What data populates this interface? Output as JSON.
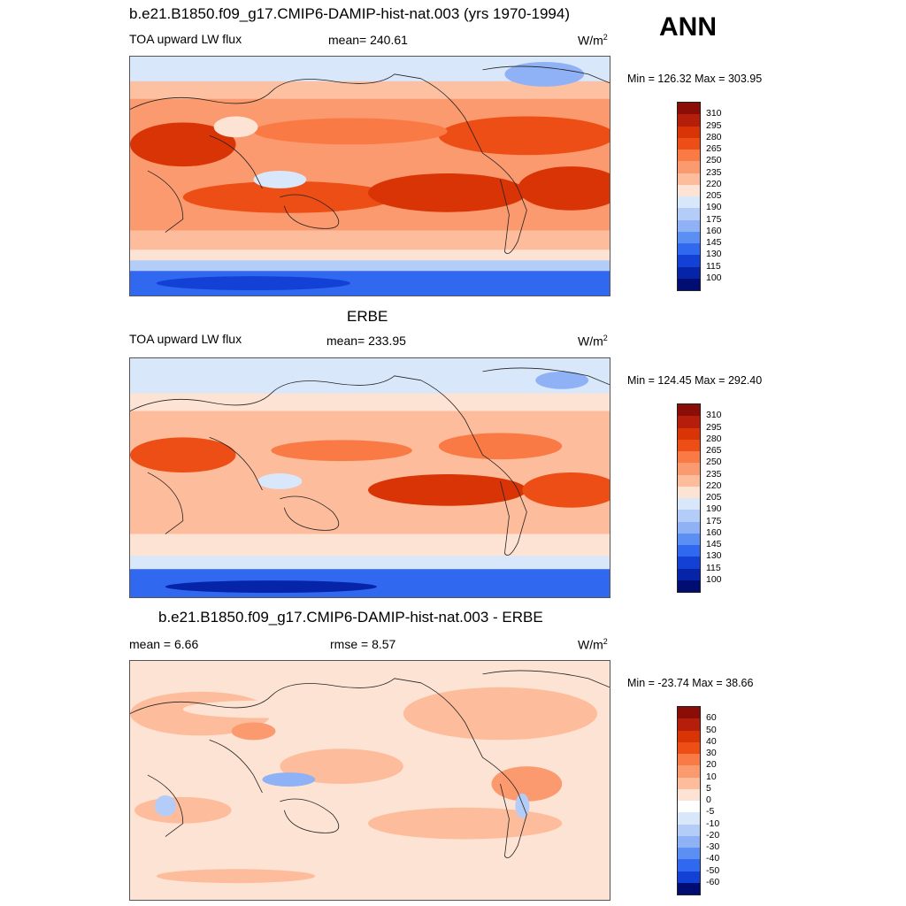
{
  "season": "ANN",
  "panel1": {
    "title": "b.e21.B1850.f09_g17.CMIP6-DAMIP-hist-nat.003 (yrs 1970-1994)",
    "variable": "TOA upward LW flux",
    "mean": "mean= 240.61",
    "units": "W/m",
    "units_sup": "2",
    "minmax": "Min = 126.32 Max = 303.95"
  },
  "panel2": {
    "title": "ERBE",
    "variable": "TOA upward LW flux",
    "mean": "mean= 233.95",
    "units": "W/m",
    "units_sup": "2",
    "minmax": "Min = 124.45 Max = 292.40"
  },
  "panel3": {
    "title": "b.e21.B1850.f09_g17.CMIP6-DAMIP-hist-nat.003 - ERBE",
    "mean": "mean =   6.66",
    "rmse": "rmse =   8.57",
    "units": "W/m",
    "units_sup": "2",
    "minmax": "Min = -23.74 Max =  38.66"
  },
  "colorbar_abs": {
    "labels": [
      "310",
      "295",
      "280",
      "265",
      "250",
      "235",
      "220",
      "205",
      "190",
      "175",
      "160",
      "145",
      "130",
      "115",
      "100"
    ],
    "colors": [
      "#8a0d08",
      "#b51e0a",
      "#d93406",
      "#ed4e16",
      "#f97a45",
      "#fb9a6e",
      "#fdbd9c",
      "#fde3d3",
      "#d9e7fb",
      "#b4cdf8",
      "#8fb1f6",
      "#5c8ff4",
      "#3168f0",
      "#1341d6",
      "#0524a8",
      "#000e73"
    ]
  },
  "colorbar_diff": {
    "labels": [
      "60",
      "50",
      "40",
      "30",
      "20",
      "10",
      "5",
      "0",
      "-5",
      "-10",
      "-20",
      "-30",
      "-40",
      "-50",
      "-60"
    ],
    "colors": [
      "#8a0d08",
      "#b51e0a",
      "#d93406",
      "#ed4e16",
      "#f97a45",
      "#fb9a6e",
      "#fdbd9c",
      "#fde3d3",
      "#ffffff",
      "#d9e7fb",
      "#b4cdf8",
      "#8fb1f6",
      "#5c8ff4",
      "#3168f0",
      "#1341d6",
      "#000e73"
    ]
  }
}
